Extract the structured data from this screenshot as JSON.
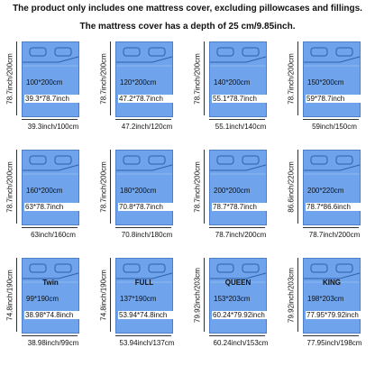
{
  "header": {
    "line1": "The product only includes one mattress cover, excluding pillowcases and fillings.",
    "line2": "The mattress cover has a depth of 25 cm/9.85inch."
  },
  "items": [
    {
      "size": "100*200cm",
      "inch": "39.3*78.7inch",
      "width": "39.3inch/100cm",
      "height": "78.7inch/200cm"
    },
    {
      "size": "120*200cm",
      "inch": "47.2*78.7inch",
      "width": "47.2inch/120cm",
      "height": "78.7inch/200cm"
    },
    {
      "size": "140*200cm",
      "inch": "55.1*78.7inch",
      "width": "55.1inch/140cm",
      "height": "78.7inch/200cm"
    },
    {
      "size": "150*200cm",
      "inch": "59*78.7inch",
      "width": "59inch/150cm",
      "height": "78.7inch/200cm"
    },
    {
      "size": "160*200cm",
      "inch": "63*78.7inch",
      "width": "63inch/160cm",
      "height": "78.7inch/200cm"
    },
    {
      "size": "180*200cm",
      "inch": "70.8*78.7inch",
      "width": "70.8inch/180cm",
      "height": "78.7inch/200cm"
    },
    {
      "size": "200*200cm",
      "inch": "78.7*78.7inch",
      "width": "78.7inch/200cm",
      "height": "78.7inch/200cm"
    },
    {
      "size": "200*220cm",
      "inch": "78.7*86.6inch",
      "width": "78.7inch/200cm",
      "height": "86.6inch/220cm"
    },
    {
      "name": "Twin",
      "size": "99*190cm",
      "inch": "38.98*74.8inch",
      "width": "38.98inch/99cm",
      "height": "74.8inch/190cm"
    },
    {
      "name": "FULL",
      "size": "137*190cm",
      "inch": "53.94*74.8inch",
      "width": "53.94inch/137cm",
      "height": "74.8inch/190cm"
    },
    {
      "name": "QUEEN",
      "size": "153*203cm",
      "inch": "60.24*79.92inch",
      "width": "60.24inch/153cm",
      "height": "79.92inch/203cm"
    },
    {
      "name": "KING",
      "size": "198*203cm",
      "inch": "77.95*79.92inch",
      "width": "77.95inch/198cm",
      "height": "79.92inch/203cm"
    }
  ]
}
